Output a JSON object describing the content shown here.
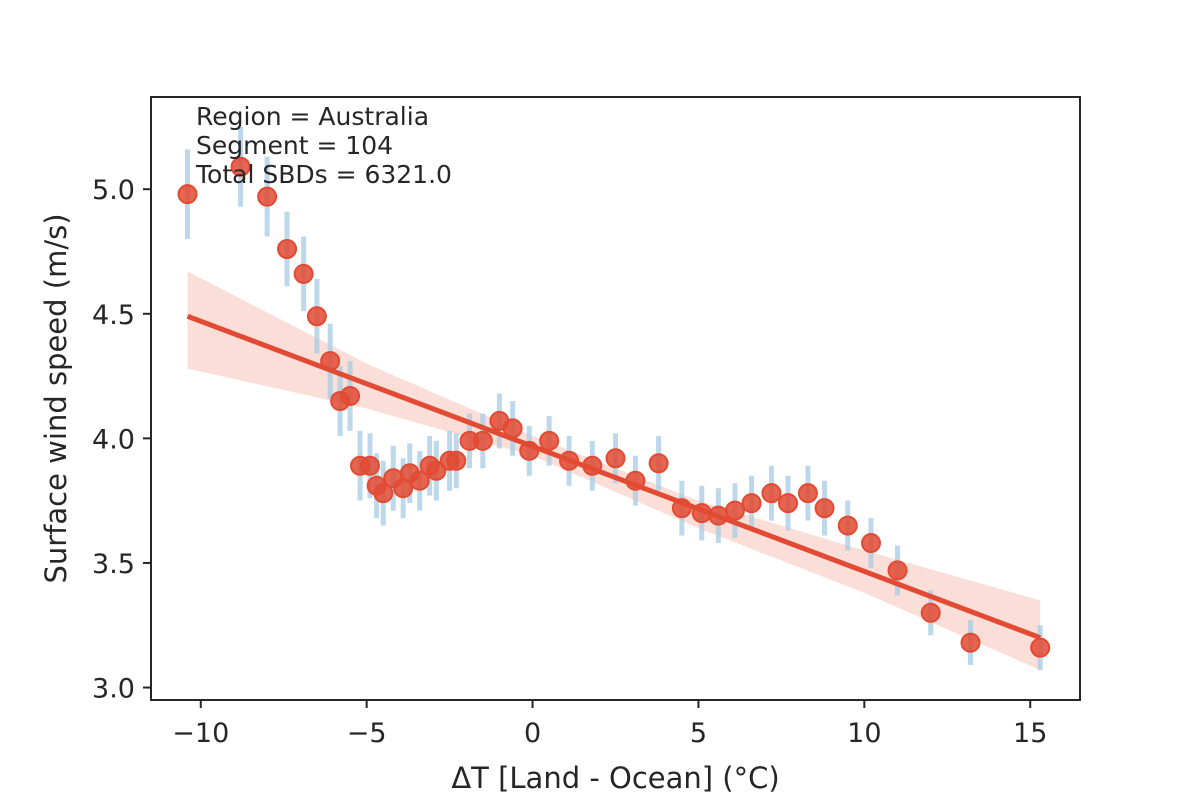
{
  "chart_data": {
    "type": "scatter",
    "xlabel": "ΔT [Land - Ocean] (°C)",
    "ylabel": "Surface wind speed (m/s)",
    "xlim": [
      -11.5,
      16.5
    ],
    "ylim": [
      2.95,
      5.37
    ],
    "x_ticks": [
      -10,
      -5,
      0,
      5,
      10,
      15
    ],
    "x_tick_labels": [
      "−10",
      "−5",
      "0",
      "5",
      "10",
      "15"
    ],
    "y_ticks": [
      3.0,
      3.5,
      4.0,
      4.5,
      5.0
    ],
    "y_tick_labels": [
      "3.0",
      "3.5",
      "4.0",
      "4.5",
      "5.0"
    ],
    "grid": false,
    "annotations": [
      "Region = Australia",
      "Segment = 104",
      "Total SBDs = 6321.0"
    ],
    "colors": {
      "points": "#e24a33",
      "errorbars": "#a6cbe3",
      "fit": "#e24a33",
      "ci_band": "#f7c8bd"
    },
    "points": [
      {
        "x": -10.4,
        "y": 4.98,
        "err": 0.18
      },
      {
        "x": -8.8,
        "y": 5.09,
        "err": 0.16
      },
      {
        "x": -8.0,
        "y": 4.97,
        "err": 0.16
      },
      {
        "x": -7.4,
        "y": 4.76,
        "err": 0.15
      },
      {
        "x": -6.9,
        "y": 4.66,
        "err": 0.15
      },
      {
        "x": -6.5,
        "y": 4.49,
        "err": 0.15
      },
      {
        "x": -6.1,
        "y": 4.31,
        "err": 0.15
      },
      {
        "x": -5.8,
        "y": 4.15,
        "err": 0.14
      },
      {
        "x": -5.5,
        "y": 4.17,
        "err": 0.14
      },
      {
        "x": -5.2,
        "y": 3.89,
        "err": 0.14
      },
      {
        "x": -4.9,
        "y": 3.89,
        "err": 0.13
      },
      {
        "x": -4.7,
        "y": 3.81,
        "err": 0.13
      },
      {
        "x": -4.5,
        "y": 3.78,
        "err": 0.13
      },
      {
        "x": -4.2,
        "y": 3.84,
        "err": 0.13
      },
      {
        "x": -3.9,
        "y": 3.8,
        "err": 0.12
      },
      {
        "x": -3.7,
        "y": 3.86,
        "err": 0.12
      },
      {
        "x": -3.4,
        "y": 3.83,
        "err": 0.12
      },
      {
        "x": -3.1,
        "y": 3.89,
        "err": 0.12
      },
      {
        "x": -2.9,
        "y": 3.87,
        "err": 0.12
      },
      {
        "x": -2.5,
        "y": 3.91,
        "err": 0.12
      },
      {
        "x": -2.3,
        "y": 3.91,
        "err": 0.11
      },
      {
        "x": -1.9,
        "y": 3.99,
        "err": 0.11
      },
      {
        "x": -1.5,
        "y": 3.99,
        "err": 0.11
      },
      {
        "x": -1.0,
        "y": 4.07,
        "err": 0.11
      },
      {
        "x": -0.6,
        "y": 4.04,
        "err": 0.11
      },
      {
        "x": -0.1,
        "y": 3.95,
        "err": 0.1
      },
      {
        "x": 0.5,
        "y": 3.99,
        "err": 0.1
      },
      {
        "x": 1.1,
        "y": 3.91,
        "err": 0.1
      },
      {
        "x": 1.8,
        "y": 3.89,
        "err": 0.1
      },
      {
        "x": 2.5,
        "y": 3.92,
        "err": 0.1
      },
      {
        "x": 3.1,
        "y": 3.83,
        "err": 0.1
      },
      {
        "x": 3.8,
        "y": 3.9,
        "err": 0.11
      },
      {
        "x": 4.5,
        "y": 3.72,
        "err": 0.11
      },
      {
        "x": 5.1,
        "y": 3.7,
        "err": 0.11
      },
      {
        "x": 5.6,
        "y": 3.69,
        "err": 0.11
      },
      {
        "x": 6.1,
        "y": 3.71,
        "err": 0.11
      },
      {
        "x": 6.6,
        "y": 3.74,
        "err": 0.11
      },
      {
        "x": 7.2,
        "y": 3.78,
        "err": 0.11
      },
      {
        "x": 7.7,
        "y": 3.74,
        "err": 0.11
      },
      {
        "x": 8.3,
        "y": 3.78,
        "err": 0.11
      },
      {
        "x": 8.8,
        "y": 3.72,
        "err": 0.11
      },
      {
        "x": 9.5,
        "y": 3.65,
        "err": 0.1
      },
      {
        "x": 10.2,
        "y": 3.58,
        "err": 0.1
      },
      {
        "x": 11.0,
        "y": 3.47,
        "err": 0.1
      },
      {
        "x": 12.0,
        "y": 3.3,
        "err": 0.09
      },
      {
        "x": 13.2,
        "y": 3.18,
        "err": 0.09
      },
      {
        "x": 15.3,
        "y": 3.16,
        "err": 0.09
      }
    ],
    "fit_line": {
      "x": [
        -10.4,
        15.3
      ],
      "y": [
        4.49,
        3.2
      ]
    },
    "ci_band": {
      "x": [
        -10.4,
        -5.0,
        0.0,
        5.0,
        10.0,
        15.3
      ],
      "upper": [
        4.67,
        4.3,
        4.01,
        3.75,
        3.55,
        3.35
      ],
      "lower": [
        4.28,
        4.12,
        3.93,
        3.64,
        3.38,
        3.07
      ]
    }
  }
}
